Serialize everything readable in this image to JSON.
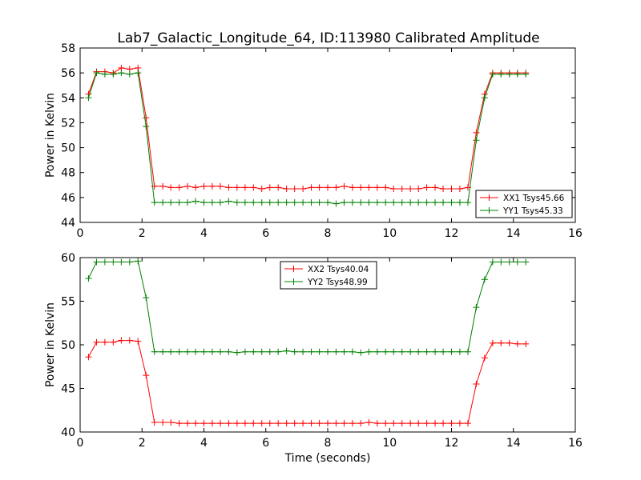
{
  "chart_data": [
    {
      "type": "line",
      "title": "Lab7_Galactic_Longitude_64, ID:113980 Calibrated Amplitude",
      "xlabel": "",
      "ylabel": "Power in Kelvin",
      "xlim": [
        0,
        16
      ],
      "ylim": [
        44,
        58
      ],
      "xticks": [
        0,
        2,
        4,
        6,
        8,
        10,
        12,
        14,
        16
      ],
      "yticks": [
        44,
        46,
        48,
        50,
        52,
        54,
        56,
        58
      ],
      "grid": false,
      "legend_position": "lower-right",
      "x": [
        0.27,
        0.53,
        0.8,
        1.07,
        1.33,
        1.6,
        1.87,
        2.13,
        2.4,
        2.67,
        2.93,
        3.2,
        3.47,
        3.73,
        4.0,
        4.27,
        4.53,
        4.8,
        5.07,
        5.33,
        5.6,
        5.87,
        6.13,
        6.4,
        6.67,
        6.93,
        7.2,
        7.47,
        7.73,
        8.0,
        8.27,
        8.53,
        8.8,
        9.07,
        9.33,
        9.6,
        9.87,
        10.13,
        10.4,
        10.67,
        10.93,
        11.2,
        11.47,
        11.73,
        12.0,
        12.27,
        12.53,
        12.8,
        13.07,
        13.33,
        13.6,
        13.87,
        14.13,
        14.4
      ],
      "series": [
        {
          "name": "XX1 Tsys45.66",
          "color": "#ff0000",
          "values": [
            54.3,
            56.1,
            56.1,
            56.0,
            56.4,
            56.3,
            56.4,
            52.4,
            46.9,
            46.9,
            46.8,
            46.8,
            46.9,
            46.8,
            46.9,
            46.9,
            46.9,
            46.8,
            46.8,
            46.8,
            46.8,
            46.7,
            46.8,
            46.8,
            46.7,
            46.7,
            46.7,
            46.8,
            46.8,
            46.8,
            46.8,
            46.9,
            46.8,
            46.8,
            46.8,
            46.8,
            46.8,
            46.7,
            46.7,
            46.7,
            46.7,
            46.8,
            46.8,
            46.7,
            46.7,
            46.7,
            46.8,
            51.2,
            54.3,
            56.0,
            56.0,
            56.0,
            56.0,
            56.0
          ]
        },
        {
          "name": "YY1 Tsys45.33",
          "color": "#008000",
          "values": [
            54.0,
            56.0,
            55.9,
            55.9,
            56.0,
            55.9,
            56.0,
            51.7,
            45.6,
            45.6,
            45.6,
            45.6,
            45.6,
            45.7,
            45.6,
            45.6,
            45.6,
            45.7,
            45.6,
            45.6,
            45.6,
            45.6,
            45.6,
            45.6,
            45.6,
            45.6,
            45.6,
            45.6,
            45.6,
            45.6,
            45.5,
            45.6,
            45.6,
            45.6,
            45.6,
            45.6,
            45.6,
            45.6,
            45.6,
            45.6,
            45.6,
            45.6,
            45.6,
            45.6,
            45.6,
            45.6,
            45.6,
            50.6,
            54.0,
            55.9,
            55.9,
            55.9,
            55.9,
            55.9
          ]
        }
      ]
    },
    {
      "type": "line",
      "title": "",
      "xlabel": "Time (seconds)",
      "ylabel": "Power in Kelvin",
      "xlim": [
        0,
        16
      ],
      "ylim": [
        40,
        60
      ],
      "xticks": [
        0,
        2,
        4,
        6,
        8,
        10,
        12,
        14,
        16
      ],
      "yticks": [
        40,
        45,
        50,
        55,
        60
      ],
      "grid": false,
      "legend_position": "upper-center",
      "x": [
        0.27,
        0.53,
        0.8,
        1.07,
        1.33,
        1.6,
        1.87,
        2.13,
        2.4,
        2.67,
        2.93,
        3.2,
        3.47,
        3.73,
        4.0,
        4.27,
        4.53,
        4.8,
        5.07,
        5.33,
        5.6,
        5.87,
        6.13,
        6.4,
        6.67,
        6.93,
        7.2,
        7.47,
        7.73,
        8.0,
        8.27,
        8.53,
        8.8,
        9.07,
        9.33,
        9.6,
        9.87,
        10.13,
        10.4,
        10.67,
        10.93,
        11.2,
        11.47,
        11.73,
        12.0,
        12.27,
        12.53,
        12.8,
        13.07,
        13.33,
        13.6,
        13.87,
        14.13,
        14.4
      ],
      "series": [
        {
          "name": "XX2 Tsys40.04",
          "color": "#ff0000",
          "values": [
            48.6,
            50.3,
            50.3,
            50.3,
            50.5,
            50.5,
            50.4,
            46.5,
            41.1,
            41.1,
            41.1,
            41.0,
            41.0,
            41.0,
            41.0,
            41.0,
            41.0,
            41.0,
            41.0,
            41.0,
            41.0,
            41.0,
            41.0,
            41.0,
            41.0,
            41.0,
            41.0,
            41.0,
            41.0,
            41.0,
            41.0,
            41.0,
            41.0,
            41.0,
            41.1,
            41.0,
            41.0,
            41.0,
            41.0,
            41.0,
            41.0,
            41.0,
            41.0,
            41.0,
            41.0,
            41.0,
            41.0,
            45.5,
            48.5,
            50.2,
            50.2,
            50.2,
            50.1,
            50.1
          ]
        },
        {
          "name": "YY2 Tsys48.99",
          "color": "#008000",
          "values": [
            57.6,
            59.5,
            59.5,
            59.5,
            59.5,
            59.5,
            59.6,
            55.4,
            49.2,
            49.2,
            49.2,
            49.2,
            49.2,
            49.2,
            49.2,
            49.2,
            49.2,
            49.2,
            49.1,
            49.2,
            49.2,
            49.2,
            49.2,
            49.2,
            49.3,
            49.2,
            49.2,
            49.2,
            49.2,
            49.2,
            49.2,
            49.2,
            49.2,
            49.1,
            49.2,
            49.2,
            49.2,
            49.2,
            49.2,
            49.2,
            49.2,
            49.2,
            49.2,
            49.2,
            49.2,
            49.2,
            49.2,
            54.3,
            57.5,
            59.5,
            59.5,
            59.5,
            59.5,
            59.5
          ]
        }
      ]
    }
  ]
}
